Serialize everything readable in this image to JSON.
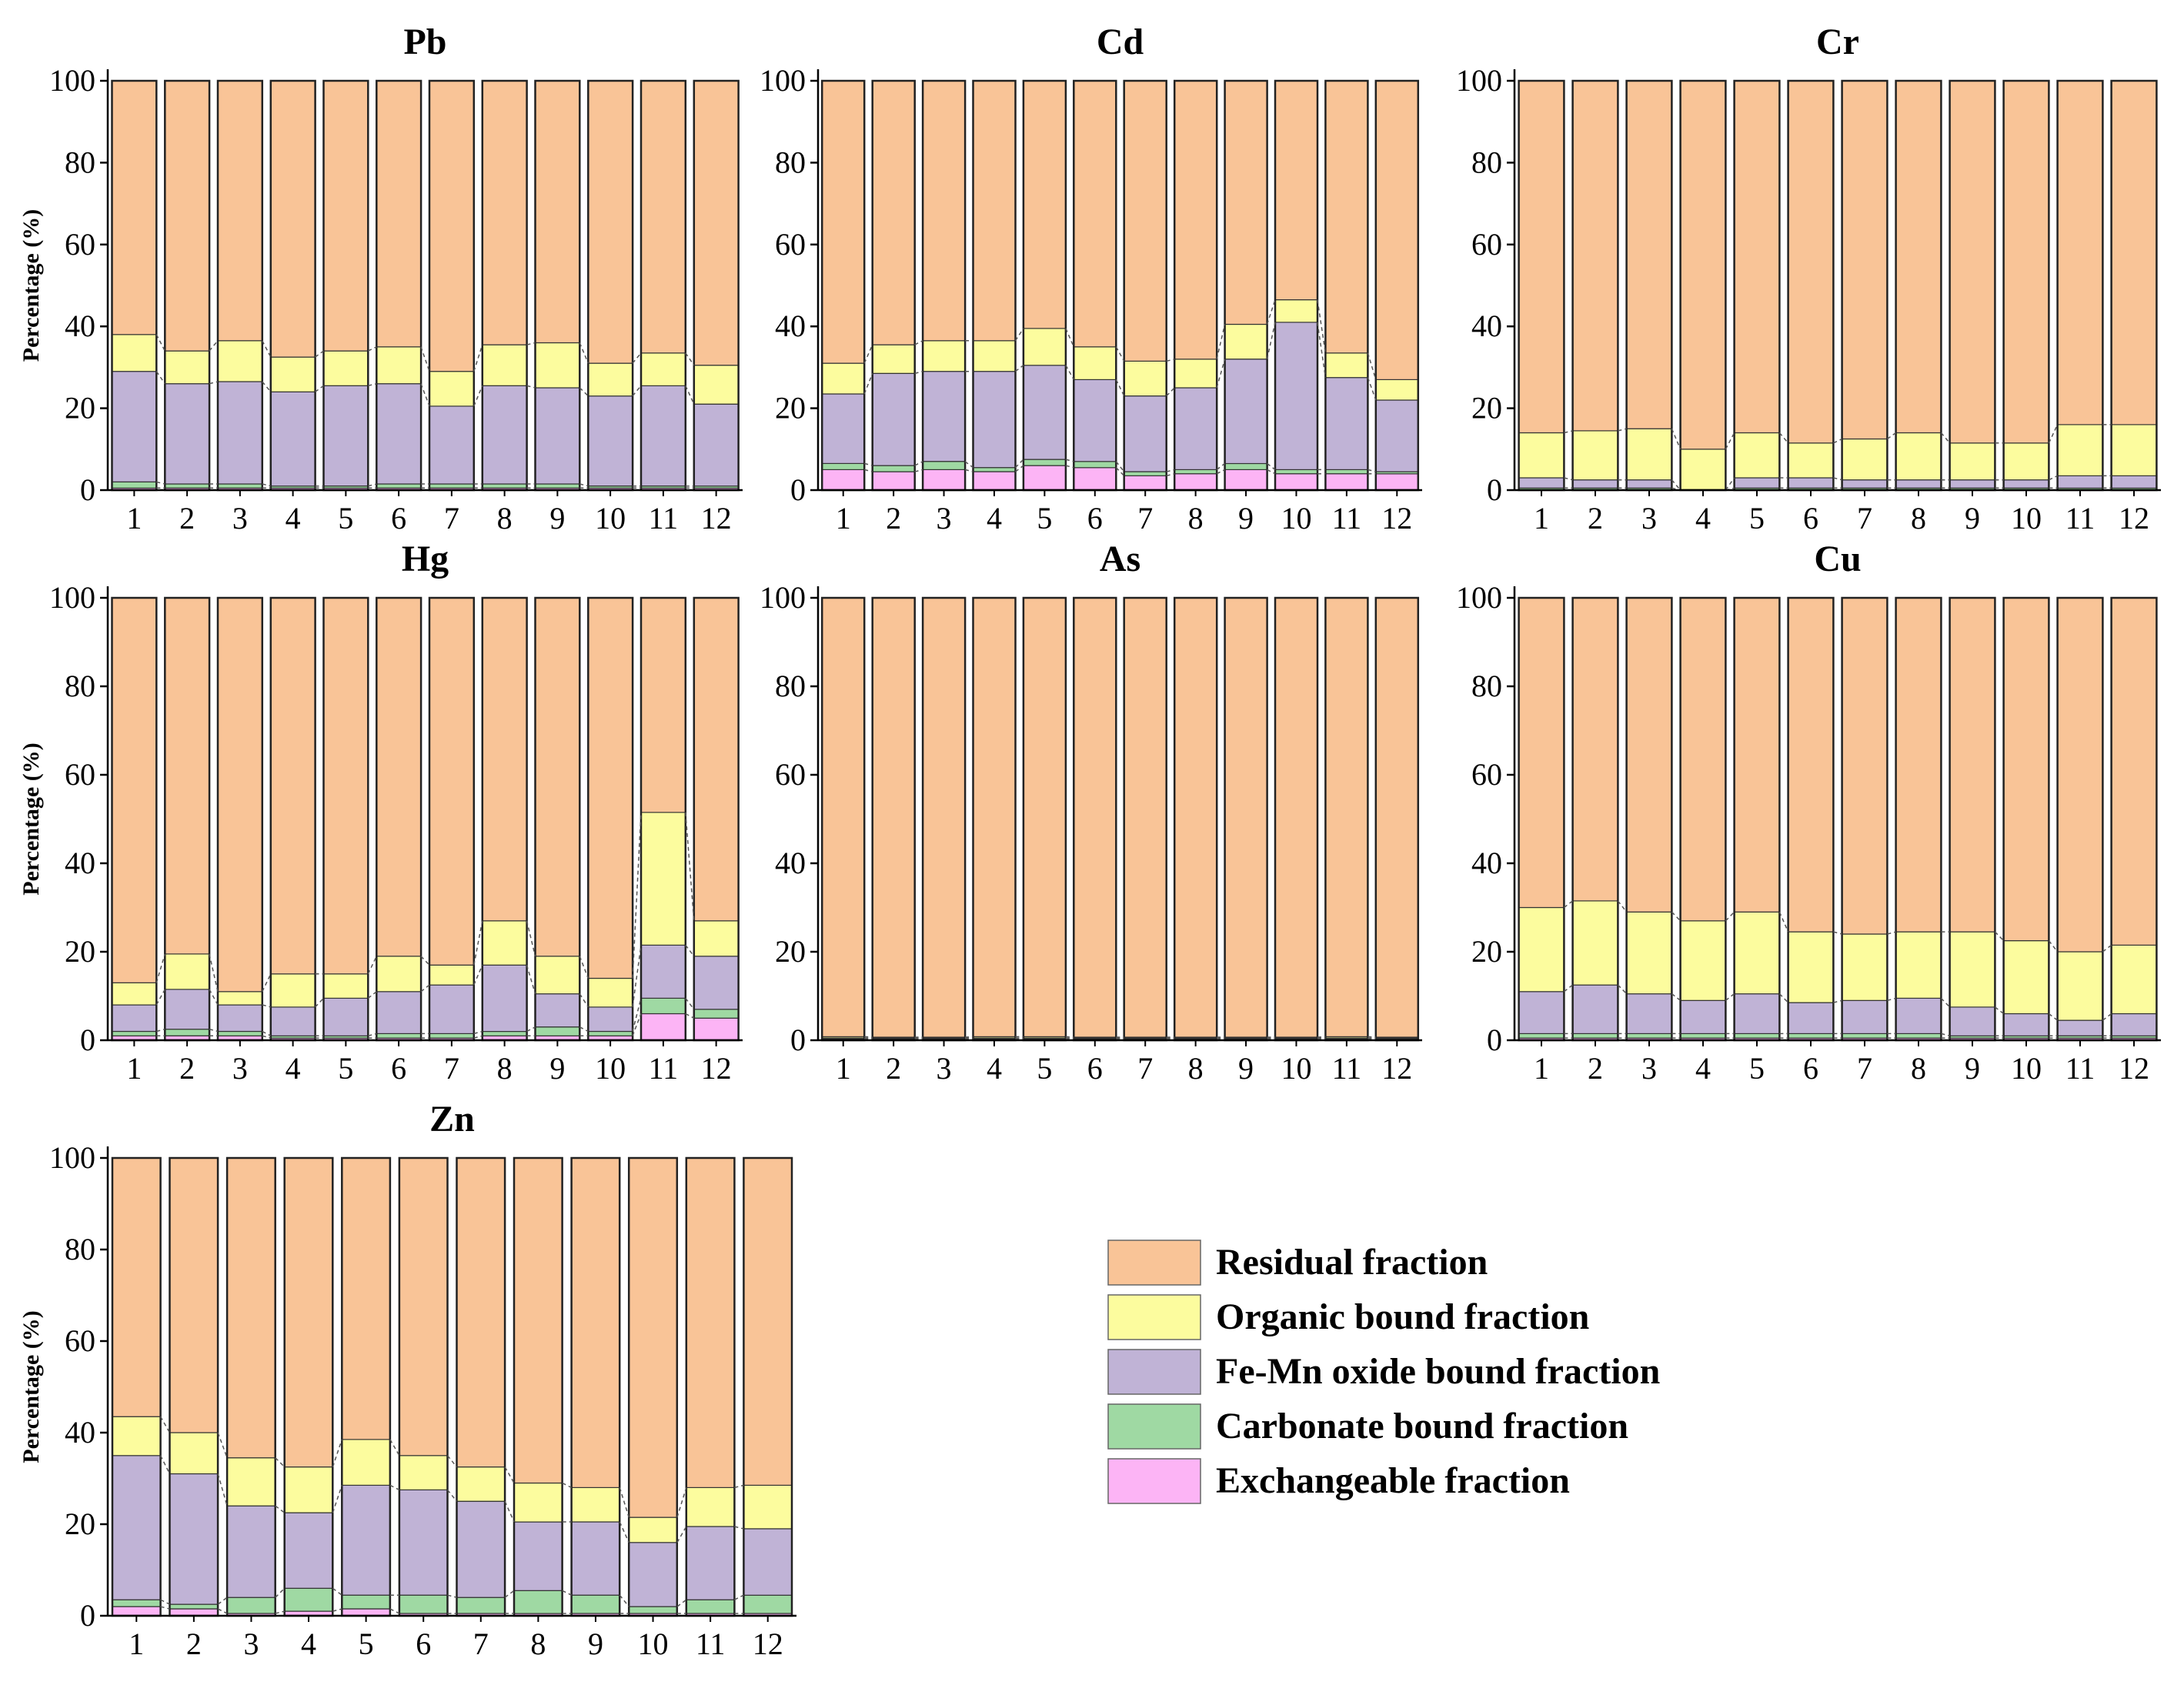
{
  "figure": {
    "legend": [
      {
        "key": "residual",
        "label": "Residual fraction",
        "color": "#F9C497"
      },
      {
        "key": "organic",
        "label": "Organic bound fraction",
        "color": "#FCFC9E"
      },
      {
        "key": "femn",
        "label": "Fe-Mn oxide bound fraction",
        "color": "#C0B3D6"
      },
      {
        "key": "carbonate",
        "label": "Carbonate bound fraction",
        "color": "#9FD9A3"
      },
      {
        "key": "exchangeable",
        "label": "Exchangeable fraction",
        "color": "#FCB4F5"
      }
    ]
  },
  "chart_data": [
    {
      "type": "bar",
      "stacked": true,
      "title": "Pb",
      "ylabel": "Percentage (%)",
      "xlabel": "",
      "ylim": [
        0,
        100
      ],
      "yticks": [
        0,
        20,
        40,
        60,
        80,
        100
      ],
      "categories": [
        "1",
        "2",
        "3",
        "4",
        "5",
        "6",
        "7",
        "8",
        "9",
        "10",
        "11",
        "12"
      ],
      "series": [
        {
          "name": "Exchangeable fraction",
          "key": "exchangeable",
          "values": [
            0.5,
            0.5,
            0.5,
            0.5,
            0.5,
            0.5,
            0.5,
            0.5,
            0.5,
            0.5,
            0.5,
            0.5
          ]
        },
        {
          "name": "Carbonate bound fraction",
          "key": "carbonate",
          "values": [
            1.5,
            1,
            1,
            0.5,
            0.5,
            1,
            1,
            1,
            1,
            0.5,
            0.5,
            0.5
          ]
        },
        {
          "name": "Fe-Mn oxide bound fraction",
          "key": "femn",
          "values": [
            27,
            24.5,
            25,
            23,
            24.5,
            24.5,
            19,
            24,
            23.5,
            22,
            24.5,
            20
          ]
        },
        {
          "name": "Organic bound fraction",
          "key": "organic",
          "values": [
            9,
            8,
            10,
            8.5,
            8.5,
            9,
            8.5,
            10,
            11,
            8,
            8,
            9.5
          ]
        },
        {
          "name": "Residual fraction",
          "key": "residual",
          "values": [
            62,
            66,
            63.5,
            67.5,
            66,
            65,
            71,
            64.5,
            64,
            69,
            66.5,
            69.5
          ]
        }
      ]
    },
    {
      "type": "bar",
      "stacked": true,
      "title": "Cd",
      "ylabel": "",
      "xlabel": "",
      "ylim": [
        0,
        100
      ],
      "yticks": [
        0,
        20,
        40,
        60,
        80,
        100
      ],
      "categories": [
        "1",
        "2",
        "3",
        "4",
        "5",
        "6",
        "7",
        "8",
        "9",
        "10",
        "11",
        "12"
      ],
      "series": [
        {
          "name": "Exchangeable fraction",
          "key": "exchangeable",
          "values": [
            5,
            4.5,
            5,
            4.5,
            6,
            5.5,
            3.5,
            4,
            5,
            4,
            4,
            4
          ]
        },
        {
          "name": "Carbonate bound fraction",
          "key": "carbonate",
          "values": [
            1.5,
            1.5,
            2,
            1,
            1.5,
            1.5,
            1,
            1,
            1.5,
            1,
            1,
            0.5
          ]
        },
        {
          "name": "Fe-Mn oxide bound fraction",
          "key": "femn",
          "values": [
            17,
            22.5,
            22,
            23.5,
            23,
            20,
            18.5,
            20,
            25.5,
            36,
            22.5,
            17.5
          ]
        },
        {
          "name": "Organic bound fraction",
          "key": "organic",
          "values": [
            7.5,
            7,
            7.5,
            7.5,
            9,
            8,
            8.5,
            7,
            8.5,
            5.5,
            6,
            5
          ]
        },
        {
          "name": "Residual fraction",
          "key": "residual",
          "values": [
            69,
            64.5,
            63.5,
            63.5,
            60.5,
            65,
            68.5,
            68,
            59.5,
            53.5,
            66.5,
            73
          ]
        }
      ]
    },
    {
      "type": "bar",
      "stacked": true,
      "title": "Cr",
      "ylabel": "",
      "xlabel": "",
      "ylim": [
        0,
        100
      ],
      "yticks": [
        0,
        20,
        40,
        60,
        80,
        100
      ],
      "categories": [
        "1",
        "2",
        "3",
        "4",
        "5",
        "6",
        "7",
        "8",
        "9",
        "10",
        "11",
        "12"
      ],
      "series": [
        {
          "name": "Exchangeable fraction",
          "key": "exchangeable",
          "values": [
            0,
            0,
            0,
            0,
            0,
            0,
            0,
            0,
            0,
            0,
            0,
            0
          ]
        },
        {
          "name": "Carbonate bound fraction",
          "key": "carbonate",
          "values": [
            0.5,
            0.5,
            0.5,
            0,
            0.5,
            0.5,
            0.5,
            0.5,
            0.5,
            0.5,
            0.5,
            0.5
          ]
        },
        {
          "name": "Fe-Mn oxide bound fraction",
          "key": "femn",
          "values": [
            2.5,
            2,
            2,
            0,
            2.5,
            2.5,
            2,
            2,
            2,
            2,
            3,
            3
          ]
        },
        {
          "name": "Organic bound fraction",
          "key": "organic",
          "values": [
            11,
            12,
            12.5,
            10,
            11,
            8.5,
            10,
            11.5,
            9,
            9,
            12.5,
            12.5
          ]
        },
        {
          "name": "Residual fraction",
          "key": "residual",
          "values": [
            86,
            85.5,
            85,
            90,
            86,
            88.5,
            87.5,
            86,
            88.5,
            88.5,
            84,
            84
          ]
        }
      ]
    },
    {
      "type": "bar",
      "stacked": true,
      "title": "Hg",
      "ylabel": "Percentage (%)",
      "xlabel": "",
      "ylim": [
        0,
        100
      ],
      "yticks": [
        0,
        20,
        40,
        60,
        80,
        100
      ],
      "categories": [
        "1",
        "2",
        "3",
        "4",
        "5",
        "6",
        "7",
        "8",
        "9",
        "10",
        "11",
        "12"
      ],
      "series": [
        {
          "name": "Exchangeable fraction",
          "key": "exchangeable",
          "values": [
            1,
            1,
            1,
            0.5,
            0.5,
            0.5,
            0.5,
            1,
            1,
            1,
            6,
            5
          ]
        },
        {
          "name": "Carbonate bound fraction",
          "key": "carbonate",
          "values": [
            1,
            1.5,
            1,
            0.5,
            0.5,
            1,
            1,
            1,
            2,
            1,
            3.5,
            2
          ]
        },
        {
          "name": "Fe-Mn oxide bound fraction",
          "key": "femn",
          "values": [
            6,
            9,
            6,
            6.5,
            8.5,
            9.5,
            11,
            15,
            7.5,
            5.5,
            12,
            12
          ]
        },
        {
          "name": "Organic bound fraction",
          "key": "organic",
          "values": [
            5,
            8,
            3,
            7.5,
            5.5,
            8,
            4.5,
            10,
            8.5,
            6.5,
            30,
            8
          ]
        },
        {
          "name": "Residual fraction",
          "key": "residual",
          "values": [
            87,
            80.5,
            89,
            85,
            85,
            81,
            83,
            73,
            81,
            86,
            48.5,
            73
          ]
        }
      ]
    },
    {
      "type": "bar",
      "stacked": true,
      "title": "As",
      "ylabel": "",
      "xlabel": "",
      "ylim": [
        0,
        100
      ],
      "yticks": [
        0,
        20,
        40,
        60,
        80,
        100
      ],
      "categories": [
        "1",
        "2",
        "3",
        "4",
        "5",
        "6",
        "7",
        "8",
        "9",
        "10",
        "11",
        "12"
      ],
      "series": [
        {
          "name": "Exchangeable fraction",
          "key": "exchangeable",
          "values": [
            0,
            0,
            0,
            0,
            0,
            0,
            0,
            0,
            0,
            0,
            0,
            0
          ]
        },
        {
          "name": "Carbonate bound fraction",
          "key": "carbonate",
          "values": [
            0.3,
            0.3,
            0.3,
            0.3,
            0.3,
            0.3,
            0.3,
            0.3,
            0.3,
            0.3,
            0.3,
            0.3
          ]
        },
        {
          "name": "Fe-Mn oxide bound fraction",
          "key": "femn",
          "values": [
            0.2,
            0.2,
            0.2,
            0.2,
            0.2,
            0.2,
            0.2,
            0.2,
            0.2,
            0.2,
            0.2,
            0.2
          ]
        },
        {
          "name": "Organic bound fraction",
          "key": "organic",
          "values": [
            0.3,
            0.2,
            0.2,
            0.3,
            0.3,
            0.2,
            0.2,
            0.2,
            0.2,
            0.2,
            0.3,
            0.2
          ]
        },
        {
          "name": "Residual fraction",
          "key": "residual",
          "values": [
            99.2,
            99.3,
            99.3,
            99.2,
            99.2,
            99.3,
            99.3,
            99.3,
            99.3,
            99.3,
            99.2,
            99.3
          ]
        }
      ]
    },
    {
      "type": "bar",
      "stacked": true,
      "title": "Cu",
      "ylabel": "",
      "xlabel": "",
      "ylim": [
        0,
        100
      ],
      "yticks": [
        0,
        20,
        40,
        60,
        80,
        100
      ],
      "categories": [
        "1",
        "2",
        "3",
        "4",
        "5",
        "6",
        "7",
        "8",
        "9",
        "10",
        "11",
        "12"
      ],
      "series": [
        {
          "name": "Exchangeable fraction",
          "key": "exchangeable",
          "values": [
            0.5,
            0.5,
            0.5,
            0.5,
            0.5,
            0.5,
            0.5,
            0.5,
            0.5,
            0.5,
            0.5,
            0.5
          ]
        },
        {
          "name": "Carbonate bound fraction",
          "key": "carbonate",
          "values": [
            1,
            1,
            1,
            1,
            1,
            1,
            1,
            1,
            0.5,
            0.5,
            0.5,
            0.5
          ]
        },
        {
          "name": "Fe-Mn oxide bound fraction",
          "key": "femn",
          "values": [
            9.5,
            11,
            9,
            7.5,
            9,
            7,
            7.5,
            8,
            6.5,
            5,
            3.5,
            5
          ]
        },
        {
          "name": "Organic bound fraction",
          "key": "organic",
          "values": [
            19,
            19,
            18.5,
            18,
            18.5,
            16,
            15,
            15,
            17,
            16.5,
            15.5,
            15.5
          ]
        },
        {
          "name": "Residual fraction",
          "key": "residual",
          "values": [
            70,
            68.5,
            71,
            73,
            71,
            75.5,
            76,
            75.5,
            75.5,
            77.5,
            80,
            78.5
          ]
        }
      ]
    },
    {
      "type": "bar",
      "stacked": true,
      "title": "Zn",
      "ylabel": "Percentage (%)",
      "xlabel": "",
      "ylim": [
        0,
        100
      ],
      "yticks": [
        0,
        20,
        40,
        60,
        80,
        100
      ],
      "categories": [
        "1",
        "2",
        "3",
        "4",
        "5",
        "6",
        "7",
        "8",
        "9",
        "10",
        "11",
        "12"
      ],
      "series": [
        {
          "name": "Exchangeable fraction",
          "key": "exchangeable",
          "values": [
            2,
            1.5,
            0.5,
            1,
            1.5,
            0.5,
            0.5,
            0.5,
            0.5,
            0.5,
            0.5,
            0.5
          ]
        },
        {
          "name": "Carbonate bound fraction",
          "key": "carbonate",
          "values": [
            1.5,
            1,
            3.5,
            5,
            3,
            4,
            3.5,
            5,
            4,
            1.5,
            3,
            4
          ]
        },
        {
          "name": "Fe-Mn oxide bound fraction",
          "key": "femn",
          "values": [
            31.5,
            28.5,
            20,
            16.5,
            24,
            23,
            21,
            15,
            16,
            14,
            16,
            14.5
          ]
        },
        {
          "name": "Organic bound fraction",
          "key": "organic",
          "values": [
            8.5,
            9,
            10.5,
            10,
            10,
            7.5,
            7.5,
            8.5,
            7.5,
            5.5,
            8.5,
            9.5
          ]
        },
        {
          "name": "Residual fraction",
          "key": "residual",
          "values": [
            56.5,
            60,
            65.5,
            67.5,
            61.5,
            65,
            67.5,
            71,
            72,
            78.5,
            72,
            71.5
          ]
        }
      ]
    }
  ]
}
